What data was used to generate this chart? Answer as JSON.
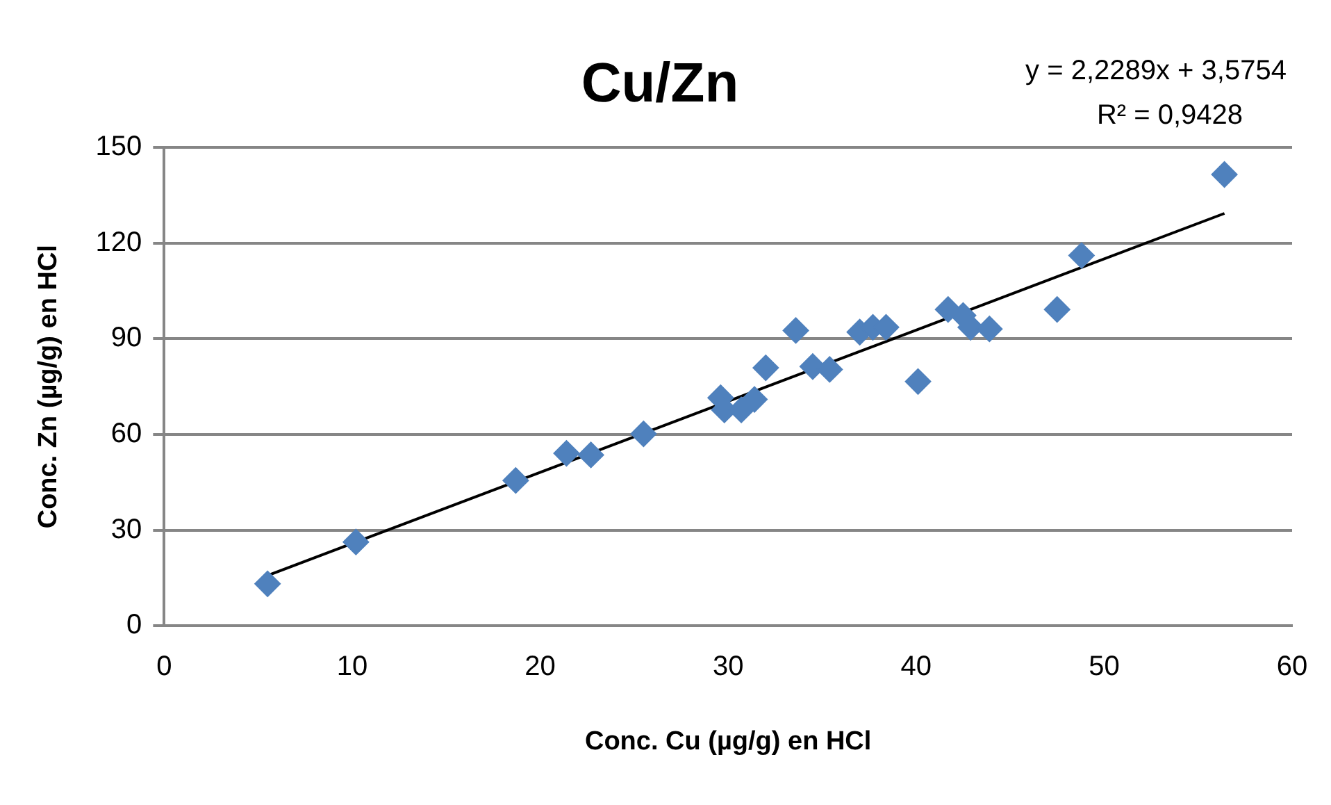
{
  "chart_data": {
    "type": "scatter",
    "title": "Cu/Zn",
    "xlabel": "Conc. Cu (µg/g) en HCl",
    "ylabel": "Conc. Zn (µg/g) en HCl",
    "annotations": [
      "y = 2,2289x + 3,5754",
      "R² = 0,9428"
    ],
    "series": [
      {
        "type": "scatter",
        "color": "#4f81bd",
        "marker": "diamond",
        "x": [
          5.5,
          10.2,
          18.7,
          21.4,
          22.7,
          25.5,
          29.6,
          29.8,
          30.7,
          31.4,
          32.0,
          33.6,
          34.5,
          35.4,
          37.0,
          37.7,
          38.4,
          40.1,
          41.7,
          42.5,
          42.9,
          43.9,
          47.5,
          48.8,
          56.4
        ],
        "values": [
          13.2,
          26.3,
          45.6,
          54.1,
          53.6,
          60.2,
          71.5,
          67.7,
          67.7,
          71.0,
          80.9,
          92.6,
          81.3,
          80.4,
          92.1,
          93.6,
          93.6,
          76.6,
          99.2,
          97.3,
          93.6,
          93.1,
          99.2,
          116.1,
          141.5
        ]
      },
      {
        "type": "line",
        "color": "#000000",
        "marker": "none",
        "x": [
          5.5,
          56.4
        ],
        "values": [
          15.8,
          129.3
        ]
      }
    ],
    "xlim": [
      0,
      60
    ],
    "xticks": [
      0,
      10,
      20,
      30,
      40,
      50,
      60
    ],
    "ylim": [
      0,
      150
    ],
    "yticks": [
      0,
      30,
      60,
      90,
      120,
      150
    ],
    "grid": "y",
    "legend": false
  }
}
